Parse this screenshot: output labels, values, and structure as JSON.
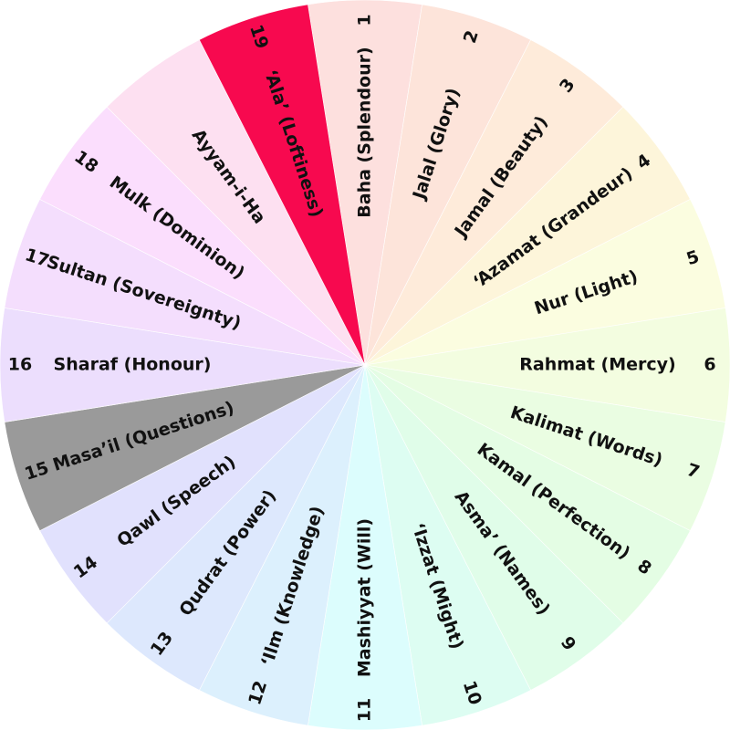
{
  "wheel": {
    "segments": [
      {
        "number": "1",
        "name": "Baha (Splendour)",
        "color": "#fde0de"
      },
      {
        "number": "2",
        "name": "Jalal (Glory)",
        "color": "#fde4da"
      },
      {
        "number": "3",
        "name": "Jamal (Beauty)",
        "color": "#feebda"
      },
      {
        "number": "4",
        "name": "‘Azamat (Grandeur)",
        "color": "#fdf5da"
      },
      {
        "number": "5",
        "name": "Nur (Light)",
        "color": "#fbfde0"
      },
      {
        "number": "6",
        "name": "Rahmat (Mercy)",
        "color": "#f3fde0"
      },
      {
        "number": "7",
        "name": "Kalimat (Words)",
        "color": "#eafde2"
      },
      {
        "number": "8",
        "name": "Kamal (Perfection)",
        "color": "#e4fde4"
      },
      {
        "number": "9",
        "name": "Asma’ (Names)",
        "color": "#e0fde9"
      },
      {
        "number": "10",
        "name": "‘Izzat (Might)",
        "color": "#ddfdf2"
      },
      {
        "number": "11",
        "name": "Mashiyyat (Will)",
        "color": "#dcfdfd"
      },
      {
        "number": "12",
        "name": "‘Ilm (Knowledge)",
        "color": "#dcf0fd"
      },
      {
        "number": "13",
        "name": "Qudrat (Power)",
        "color": "#dde8fd"
      },
      {
        "number": "14",
        "name": "Qawl (Speech)",
        "color": "#e1e1fd"
      },
      {
        "number": "15",
        "name": "Masa’il (Questions)",
        "color": "#9a9a9a"
      },
      {
        "number": "16",
        "name": "Sharaf (Honour)",
        "color": "#ecdefd"
      },
      {
        "number": "17",
        "name": "Sultan (Sovereignty)",
        "color": "#f4defd"
      },
      {
        "number": "18",
        "name": "Mulk (Dominion)",
        "color": "#fbdefd"
      },
      {
        "name": "Ayyam-i-Ha",
        "color": "#fde0f1"
      },
      {
        "number": "19",
        "name": "‘Ala’ (Loftiness)",
        "color": "#f7094f"
      }
    ]
  }
}
